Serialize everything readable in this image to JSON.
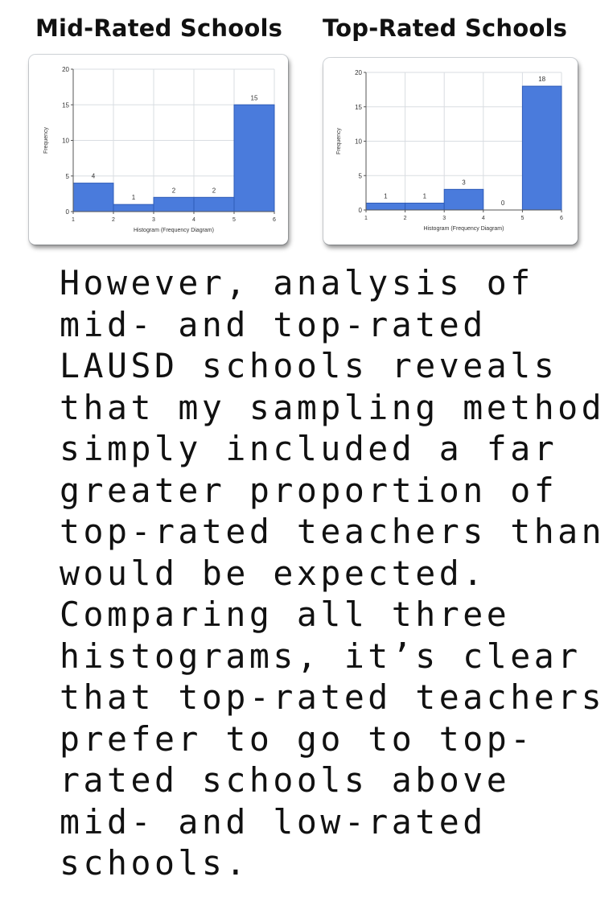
{
  "headings": {
    "mid": "Mid-Rated Schools",
    "top": "Top-Rated Schools"
  },
  "colors": {
    "bar_fill": "#4a7bdc",
    "bar_stroke": "#2f5cb8",
    "grid": "#d9dde2",
    "text": "#111111"
  },
  "chart_data": [
    {
      "type": "bar",
      "title": "Mid-Rated Schools",
      "xlabel": "Histogram (Frequency Diagram)",
      "ylabel": "Frequency",
      "bins": [
        [
          1,
          2
        ],
        [
          2,
          3
        ],
        [
          3,
          4
        ],
        [
          4,
          5
        ],
        [
          5,
          6
        ]
      ],
      "values": [
        4,
        1,
        2,
        2,
        15
      ],
      "data_labels": [
        "4",
        "1",
        "2",
        "2",
        "15"
      ],
      "xticks": [
        "1",
        "2",
        "3",
        "4",
        "5",
        "6"
      ],
      "yticks": [
        "0",
        "5",
        "10",
        "15",
        "20"
      ],
      "ylim": [
        0,
        20
      ],
      "grid": true
    },
    {
      "type": "bar",
      "title": "Top-Rated Schools",
      "xlabel": "Histogram (Frequency Diagram)",
      "ylabel": "Frequency",
      "bins": [
        [
          1,
          2
        ],
        [
          2,
          3
        ],
        [
          3,
          4
        ],
        [
          4,
          5
        ],
        [
          5,
          6
        ]
      ],
      "values": [
        1,
        1,
        3,
        0,
        18
      ],
      "data_labels": [
        "1",
        "1",
        "3",
        "0",
        "18"
      ],
      "xticks": [
        "1",
        "2",
        "3",
        "4",
        "5",
        "6"
      ],
      "yticks": [
        "0",
        "5",
        "10",
        "15",
        "20"
      ],
      "ylim": [
        0,
        20
      ],
      "grid": true
    }
  ],
  "body": {
    "lines": [
      "However, analysis of",
      "mid- and top-rated",
      "LAUSD schools reveals",
      "that my sampling method",
      "simply included a far",
      "greater proportion of",
      "top-rated teachers than",
      "would be expected.",
      "Comparing all three",
      "histograms, it’s clear",
      "that top-rated teachers",
      "prefer to go to top-",
      "rated schools above",
      "mid- and low-rated",
      "schools."
    ]
  }
}
